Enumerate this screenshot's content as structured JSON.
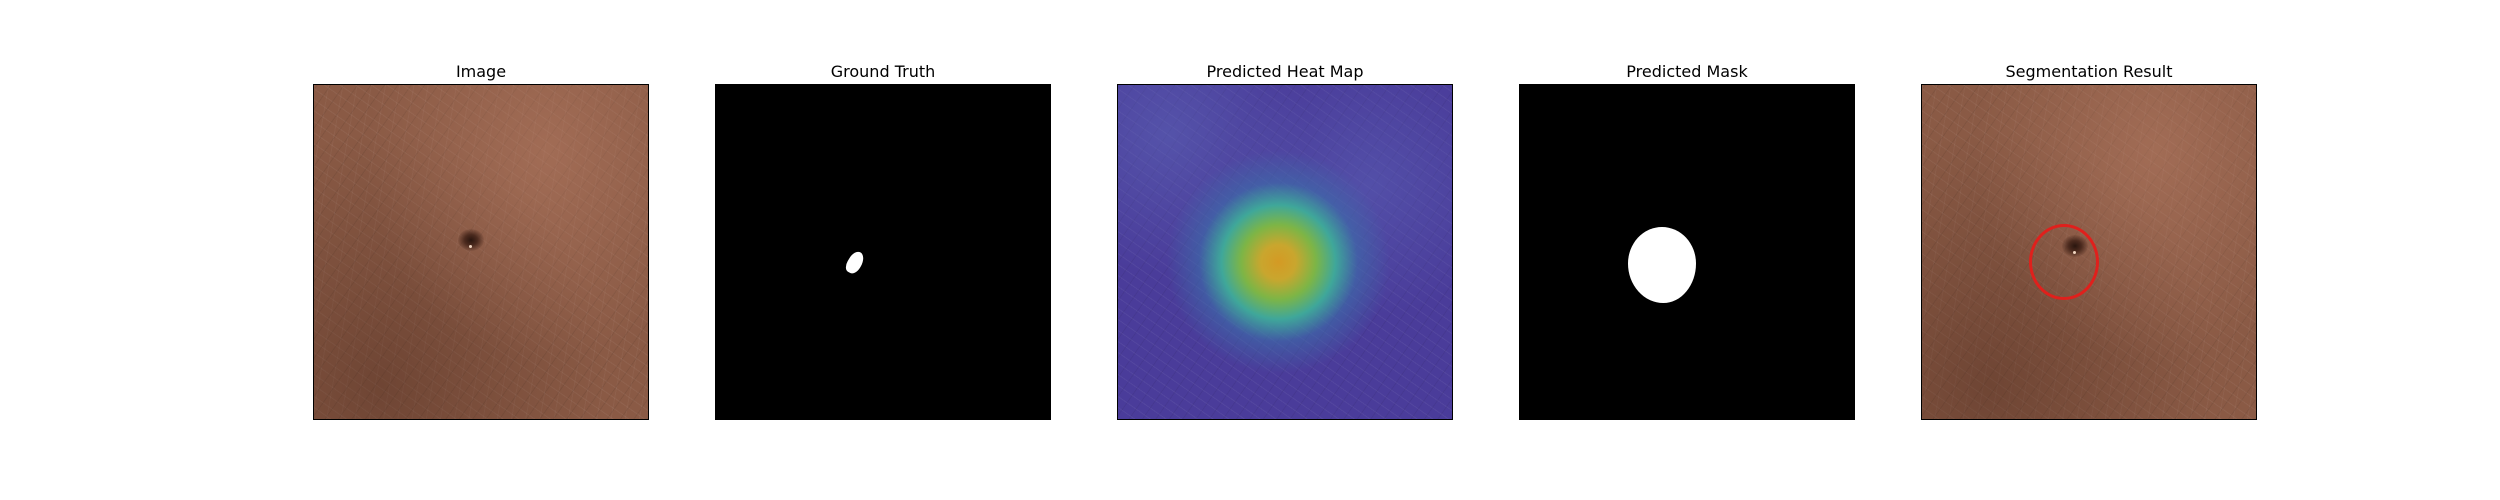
{
  "panels": [
    {
      "title": "Image"
    },
    {
      "title": "Ground Truth"
    },
    {
      "title": "Predicted Heat Map"
    },
    {
      "title": "Predicted Mask"
    },
    {
      "title": "Segmentation Result"
    }
  ],
  "colors": {
    "leather": "#8a5a45",
    "heatmap_base": "#4a3c9a",
    "heatmap_peak": "#d49a24",
    "mask": "#ffffff",
    "background_mask": "#000000",
    "ring": "#e0201c"
  }
}
